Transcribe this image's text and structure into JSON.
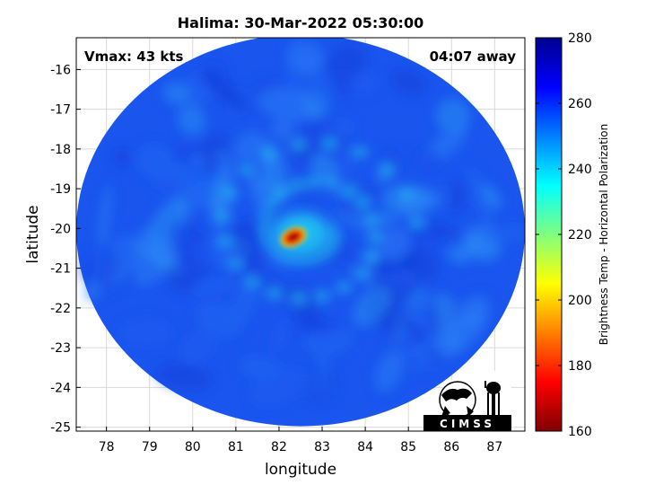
{
  "title": "Halima: 30-Mar-2022 05:30:00",
  "vmax_label": "Vmax: 43 kts",
  "time_away_label": "04:07 away",
  "x_axis": {
    "label": "longitude",
    "range": [
      77.3,
      87.7
    ],
    "ticks": [
      "78",
      "79",
      "80",
      "81",
      "82",
      "83",
      "84",
      "85",
      "86",
      "87"
    ]
  },
  "y_axis": {
    "label": "latitude",
    "range": [
      -25.1,
      -15.2
    ],
    "ticks": [
      "-16",
      "-17",
      "-18",
      "-19",
      "-20",
      "-21",
      "-22",
      "-23",
      "-24",
      "-25"
    ]
  },
  "grid": true,
  "colorbar": {
    "label": "Brightness Temp - Horizontal Polarization",
    "range": [
      160,
      280
    ],
    "ticks": [
      "160",
      "180",
      "200",
      "220",
      "240",
      "260",
      "280"
    ],
    "colormap": "jet"
  },
  "storm_center": {
    "lon": 82.5,
    "lat": -20.15
  },
  "swath_center": {
    "lon": 82.5,
    "lat": -20.05
  },
  "logo_text": "CIMSS",
  "colors": {
    "background_blue": "#1a55ee",
    "cold_core": "#b00000",
    "warm_ring": "#19d4f0"
  }
}
